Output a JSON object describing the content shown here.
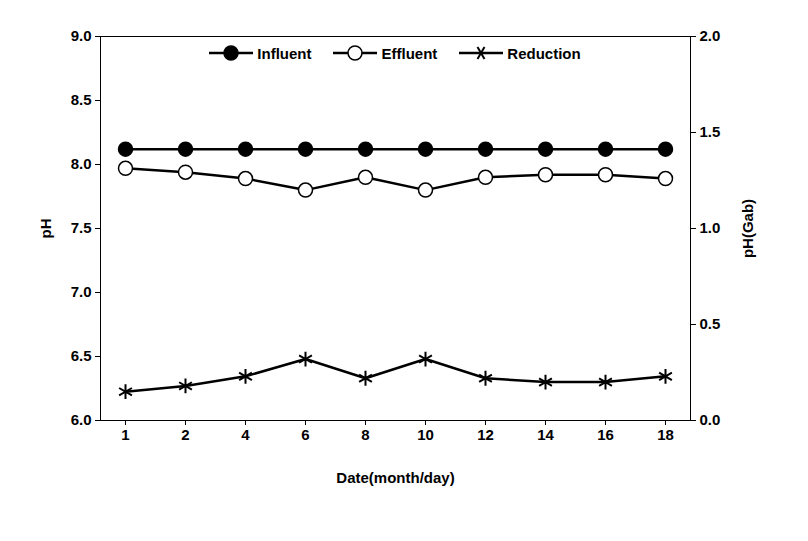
{
  "chart_data": {
    "type": "line",
    "x_label": "Date(month/day)",
    "y_label": "pH",
    "y2_label": "pH(Gab)",
    "categories": [
      "1",
      "2",
      "4",
      "6",
      "8",
      "10",
      "12",
      "14",
      "16",
      "18"
    ],
    "series": [
      {
        "name": "Influent",
        "color": "#000000",
        "marker": "circle",
        "axis": "y",
        "values": [
          8.12,
          8.12,
          8.12,
          8.12,
          8.12,
          8.12,
          8.12,
          8.12,
          8.12,
          8.12
        ]
      },
      {
        "name": "Effluent",
        "color": "#000000",
        "marker": "open_circle",
        "axis": "y",
        "values": [
          7.97,
          7.94,
          7.89,
          7.8,
          7.9,
          7.8,
          7.9,
          7.92,
          7.92,
          7.89
        ]
      },
      {
        "name": "Reduction",
        "color": "#000000",
        "marker": "asterisk",
        "axis": "y2",
        "values": [
          0.15,
          0.18,
          0.23,
          0.32,
          0.22,
          0.32,
          0.22,
          0.2,
          0.2,
          0.23
        ]
      }
    ],
    "ylim": [
      6,
      9
    ],
    "yticks": [
      {
        "value": 6,
        "label": "6.0"
      },
      6.5,
      {
        "value": 7,
        "label": "7.0"
      },
      7.5,
      {
        "value": 8,
        "label": "8.0"
      },
      8.5,
      {
        "value": 9,
        "label": "9.0"
      }
    ],
    "y2lim": [
      0,
      2
    ],
    "y2ticks": [
      {
        "value": 0,
        "label": "0.0"
      },
      0.5,
      {
        "value": 1,
        "label": "1.0"
      },
      1.5,
      {
        "value": 2,
        "label": "2.0"
      }
    ],
    "legend": "top",
    "grid": false
  }
}
